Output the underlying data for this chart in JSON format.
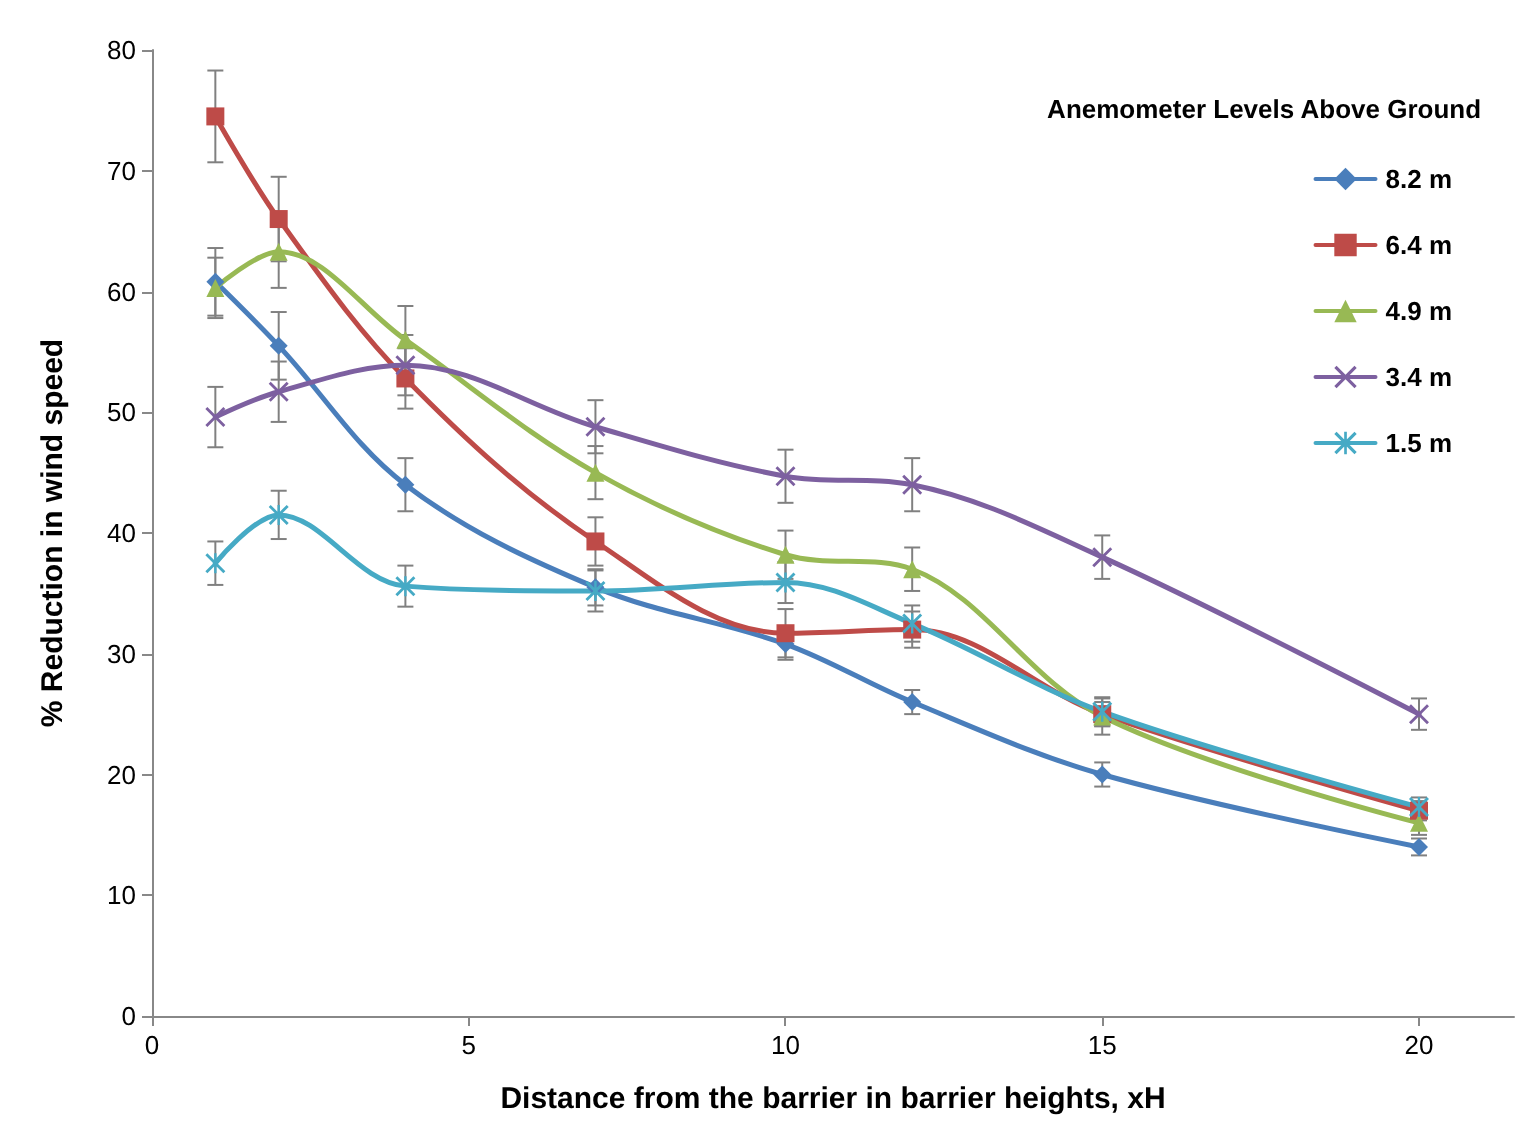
{
  "chart_data": {
    "type": "line",
    "xlabel": "Distance from the barrier in barrier heights, xH",
    "ylabel": "% Reduction in wind speed",
    "legend_title": "Anemometer Levels Above Ground",
    "x": [
      1,
      2,
      4,
      7,
      10,
      12,
      15,
      20
    ],
    "series": [
      {
        "name": "8.2 m",
        "color": "#4a7ebb",
        "marker": "diamond",
        "values": [
          60.8,
          55.5,
          44,
          35.5,
          30.8,
          26,
          20,
          14
        ],
        "errors": [
          2.8,
          2.8,
          2.2,
          1.5,
          1.3,
          1,
          1,
          0.7
        ]
      },
      {
        "name": "6.4 m",
        "color": "#be4b48",
        "marker": "square",
        "values": [
          74.5,
          66,
          52.8,
          39.3,
          31.7,
          32,
          25,
          17
        ],
        "errors": [
          3.8,
          3.5,
          2.5,
          2,
          2,
          1.5,
          1,
          0.8
        ]
      },
      {
        "name": "4.9 m",
        "color": "#98b954",
        "marker": "triangle",
        "values": [
          60.3,
          63.3,
          56,
          45,
          38.2,
          37,
          24.8,
          16
        ],
        "errors": [
          2.5,
          3,
          2.8,
          2.2,
          2,
          1.8,
          1.5,
          1
        ]
      },
      {
        "name": "3.4 m",
        "color": "#7d60a0",
        "marker": "cross",
        "values": [
          49.6,
          51.7,
          53.9,
          48.8,
          44.7,
          44,
          38,
          25
        ],
        "errors": [
          2.5,
          2.5,
          2.5,
          2.2,
          2.2,
          2.2,
          1.8,
          1.3
        ]
      },
      {
        "name": "1.5 m",
        "color": "#46aac5",
        "marker": "star",
        "values": [
          37.5,
          41.5,
          35.6,
          35.2,
          35.9,
          32.5,
          25.2,
          17.3
        ],
        "errors": [
          1.8,
          2,
          1.7,
          1.7,
          1.7,
          1.5,
          1.2,
          0.8
        ]
      }
    ],
    "xlim": [
      0,
      21.5
    ],
    "xticks": [
      0,
      5,
      10,
      15,
      20
    ],
    "ylim": [
      0,
      80
    ],
    "yticks": [
      0,
      10,
      20,
      30,
      40,
      50,
      60,
      70,
      80
    ],
    "grid": false,
    "legend": "top right",
    "line_style": "solid"
  }
}
